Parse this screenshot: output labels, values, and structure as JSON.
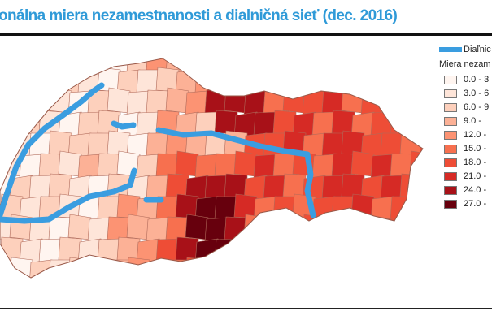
{
  "title": "onálna miera nezamestnanosti a dialničná sieť (dec. 2016)",
  "legend": {
    "highway_label": "Diaľnic",
    "highway_color": "#3a9de0",
    "unemployment_title": "Miera nezam",
    "classes": [
      {
        "label": "0.0 - 3",
        "color": "#fff5f0"
      },
      {
        "label": "3.0 - 6",
        "color": "#fee5d9"
      },
      {
        "label": "6.0 - 9",
        "color": "#fdd0bc"
      },
      {
        "label": "9.0 -",
        "color": "#fcb196"
      },
      {
        "label": "12.0 -",
        "color": "#fc9373"
      },
      {
        "label": "15.0 -",
        "color": "#f7704f"
      },
      {
        "label": "18.0 -",
        "color": "#ee4d36"
      },
      {
        "label": "21.0 -",
        "color": "#d62a25"
      },
      {
        "label": "24.0 -",
        "color": "#a81118"
      },
      {
        "label": "27.0 -",
        "color": "#67000d"
      }
    ]
  }
}
